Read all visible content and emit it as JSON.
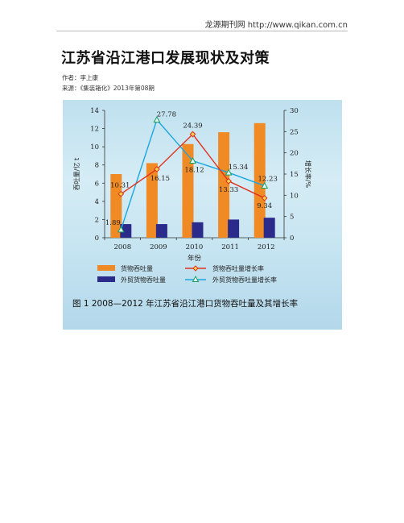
{
  "header": {
    "site": "龙源期刊网 http://www.qikan.com.cn"
  },
  "article": {
    "title": "江苏省沿江港口发展现状及对策",
    "author": "作者：李上康",
    "source": "来源：《集装箱化》2013年第08期"
  },
  "colors": {
    "bar_main": "#f08a24",
    "bar_foreign": "#2b2b8c",
    "line_main": "#e0321e",
    "line_foreign": "#1ba6e0"
  },
  "chart_data": {
    "type": "bar",
    "categories": [
      "2008",
      "2009",
      "2010",
      "2011",
      "2012"
    ],
    "xlabel": "年份",
    "ylabel": "吞吐量/亿 t",
    "y2label": "增长率/%",
    "ylim": [
      0,
      14
    ],
    "y2lim": [
      0,
      30
    ],
    "yticks": [
      "0",
      "2",
      "4",
      "6",
      "8",
      "10",
      "12",
      "14"
    ],
    "y2ticks": [
      "0",
      "5",
      "10",
      "15",
      "20",
      "25",
      "30"
    ],
    "series": [
      {
        "name": "货物吞吐量",
        "kind": "bar",
        "values": [
          7.0,
          8.2,
          10.3,
          11.6,
          12.6
        ]
      },
      {
        "name": "外贸货物吞吐量",
        "kind": "bar",
        "values": [
          1.5,
          1.5,
          1.7,
          2.0,
          2.2
        ]
      },
      {
        "name": "货物吞吐量增长率",
        "kind": "line",
        "axis": "right",
        "values": [
          10.31,
          16.15,
          24.39,
          13.33,
          9.34
        ],
        "labels": [
          "10.31",
          "16.15",
          "24.39",
          "13.33",
          "9.34"
        ]
      },
      {
        "name": "外贸货物吞吐量增长率",
        "kind": "line",
        "axis": "right",
        "values": [
          1.89,
          27.78,
          18.12,
          15.34,
          12.23
        ],
        "labels": [
          "1.89",
          "27.78",
          "18.12",
          "15.34",
          "12.23"
        ]
      }
    ],
    "legend": [
      "货物吞吐量",
      "货物吞吐量增长率",
      "外贸货物吞吐量",
      "外贸货物吞吐量增长率"
    ],
    "caption": "图 1   2008—2012 年江苏省沿江港口货物吞吐量及其增长率"
  }
}
